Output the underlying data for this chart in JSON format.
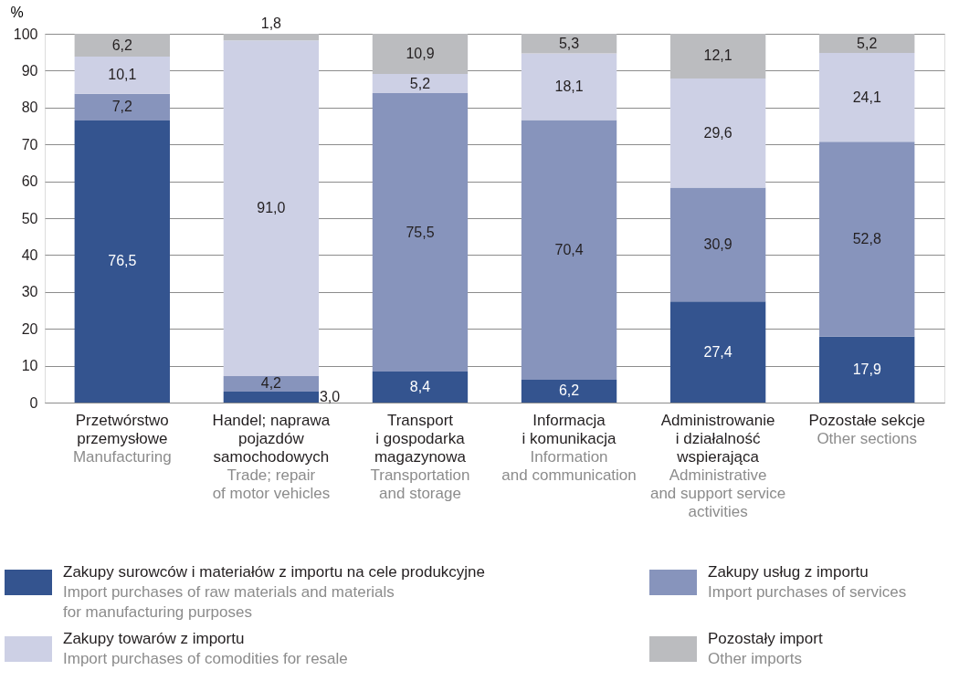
{
  "chart_data": {
    "type": "bar",
    "stacked": true,
    "ylabel": "%",
    "ylim": [
      0,
      100
    ],
    "yticks": [
      0,
      10,
      20,
      30,
      40,
      50,
      60,
      70,
      80,
      90,
      100
    ],
    "grid": "y",
    "legend": "bottom",
    "categories": [
      "Przetwórstwo przemysłowe\nManufacturing",
      "Handel; naprawa pojazdów samochodowych\nTrade; repair of motor vehicles",
      "Transport i gospodarka magazynowa\nTransportation and storage",
      "Informacja i komunikacja\nInformation and communication",
      "Administrowanie i działalność wspierająca\nAdministrative and support service activities",
      "Pozostałe sekcje\nOther sections"
    ],
    "series": [
      {
        "name": "Zakupy surowców i materiałów z importu na cele produkcyjne\nImport purchases of raw materials and materials for manufacturing purposes",
        "color": "#34548f",
        "values": [
          76.5,
          3.0,
          8.4,
          6.2,
          27.4,
          17.9
        ],
        "value_labels": [
          "76,5",
          "3,0",
          "8,4",
          "6,2",
          "27,4",
          "17,9"
        ]
      },
      {
        "name": "Zakupy usług z importu\nImport purchases of services",
        "color": "#8794bc",
        "values": [
          7.2,
          4.2,
          75.5,
          70.4,
          30.9,
          52.8
        ],
        "value_labels": [
          "7,2",
          "4,2",
          "75,5",
          "70,4",
          "30,9",
          "52,8"
        ]
      },
      {
        "name": "Zakupy towarów z importu\nImport purchases of comodities for resale",
        "color": "#cdd0e5",
        "values": [
          10.1,
          91.0,
          5.2,
          18.1,
          29.6,
          24.1
        ],
        "value_labels": [
          "10,1",
          "91,0",
          "5,2",
          "18,1",
          "29,6",
          "24,1"
        ]
      },
      {
        "name": "Pozostały import\nOther imports",
        "color": "#bbbcbf",
        "values": [
          6.2,
          1.8,
          10.9,
          5.3,
          12.1,
          5.2
        ],
        "value_labels": [
          "6,2",
          "1,8",
          "10,9",
          "5,3",
          "12,1",
          "5,2"
        ]
      }
    ]
  }
}
